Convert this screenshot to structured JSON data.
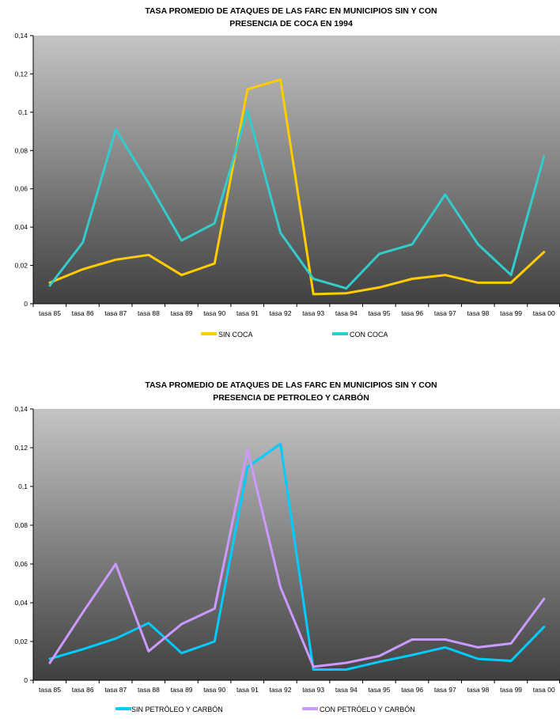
{
  "chart_data": [
    {
      "type": "line",
      "title": "TASA PROMEDIO DE ATAQUES DE LAS FARC EN MUNICIPIOS SIN Y CON",
      "subtitle": "PRESENCIA DE COCA EN 1994",
      "categories": [
        "tasa 85",
        "tasa 86",
        "tasa 87",
        "tasa 88",
        "tasa 89",
        "tasa 90",
        "tasa 91",
        "tasa 92",
        "tasa 93",
        "tasa 94",
        "tasa 95",
        "tasa 96",
        "tasa 97",
        "tasa 98",
        "tasa 99",
        "tasa 00"
      ],
      "ylim": [
        0,
        0.14
      ],
      "yticks": [
        "0",
        "0,02",
        "0,04",
        "0,06",
        "0,08",
        "0,1",
        "0,12",
        "0,14"
      ],
      "series": [
        {
          "name": "SIN COCA",
          "color": "#FFCC00",
          "values": [
            0.011,
            0.018,
            0.023,
            0.0255,
            0.015,
            0.021,
            0.112,
            0.117,
            0.005,
            0.0055,
            0.0085,
            0.013,
            0.015,
            0.011,
            0.011,
            0.027
          ]
        },
        {
          "name": "CON COCA",
          "color": "#33CCCC",
          "values": [
            0.0095,
            0.032,
            0.091,
            0.063,
            0.033,
            0.042,
            0.101,
            0.037,
            0.013,
            0.008,
            0.026,
            0.031,
            0.057,
            0.031,
            0.015,
            0.077
          ]
        }
      ]
    },
    {
      "type": "line",
      "title": "TASA PROMEDIO DE ATAQUES DE LAS FARC EN MUNICIPIOS SIN Y CON",
      "subtitle": "PRESENCIA DE PETROLEO Y CARBÓN",
      "categories": [
        "tasa 85",
        "tasa 86",
        "tasa 87",
        "tasa 88",
        "tasa 89",
        "tasa 90",
        "tasa 91",
        "tasa 92",
        "tasa 93",
        "tasa 94",
        "tasa 95",
        "tasa 96",
        "tasa 97",
        "tasa 98",
        "tasa 99",
        "tasa 00"
      ],
      "ylim": [
        0,
        0.14
      ],
      "yticks": [
        "0",
        "0,02",
        "0,04",
        "0,06",
        "0,08",
        "0,1",
        "0,12",
        "0,14"
      ],
      "series": [
        {
          "name": "SIN PETRÓLEO Y CARBÓN",
          "color": "#00CCFF",
          "values": [
            0.011,
            0.016,
            0.0215,
            0.0295,
            0.014,
            0.02,
            0.11,
            0.122,
            0.0055,
            0.0055,
            0.0095,
            0.013,
            0.017,
            0.011,
            0.01,
            0.0275
          ]
        },
        {
          "name": "CON PETRÓELO Y CARBÓN",
          "color": "#CC99FF",
          "values": [
            0.009,
            0.035,
            0.06,
            0.015,
            0.029,
            0.037,
            0.119,
            0.048,
            0.007,
            0.009,
            0.0125,
            0.021,
            0.021,
            0.017,
            0.019,
            0.042
          ]
        }
      ]
    }
  ]
}
